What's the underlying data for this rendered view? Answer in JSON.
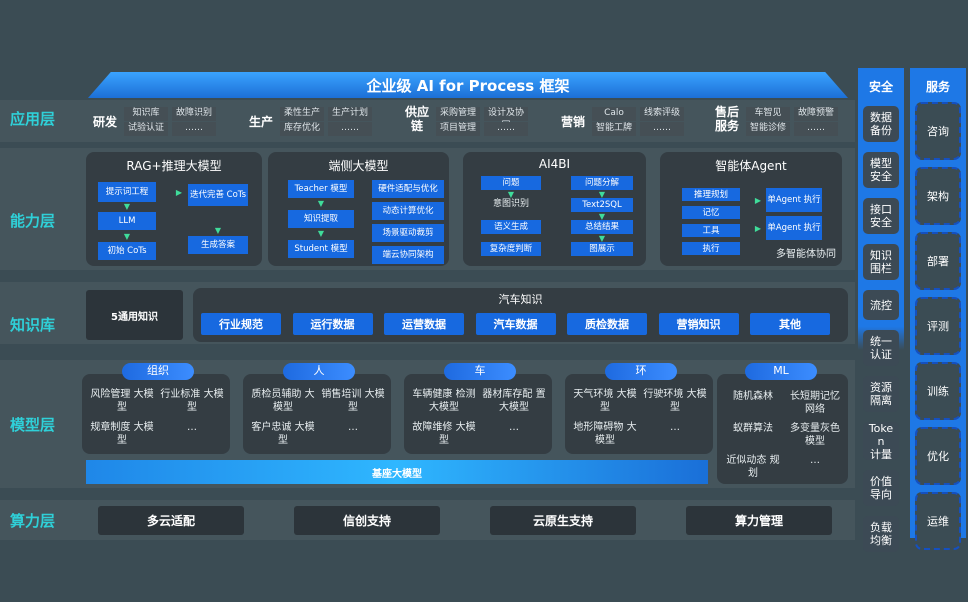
{
  "title": "企业级 AI for Process 框架",
  "layers": {
    "app": "应用层",
    "capability": "能力层",
    "knowledge": "知识库",
    "model": "模型层",
    "compute": "算力层"
  },
  "app_groups": [
    {
      "name": "研发",
      "items": [
        [
          "知识库",
          "试验认证"
        ],
        [
          "故障识别",
          "……"
        ]
      ]
    },
    {
      "name": "生产",
      "items": [
        [
          "柔性生产",
          "库存优化"
        ],
        [
          "生产计划",
          "……"
        ]
      ]
    },
    {
      "name": "供应链",
      "items": [
        [
          "采购管理",
          "项目管理"
        ],
        [
          "设计及协同",
          "……"
        ]
      ]
    },
    {
      "name": "营销",
      "items": [
        [
          "Calo",
          "智能工牌"
        ],
        [
          "线索评级",
          "……"
        ]
      ]
    },
    {
      "name": "售后服务",
      "items": [
        [
          "车智见",
          "智能诊修"
        ],
        [
          "故障预警",
          "……"
        ]
      ]
    }
  ],
  "capability": {
    "rag": {
      "title": "RAG+推理大模型",
      "steps": [
        "提示词工程",
        "LLM",
        "初始 CoTs"
      ],
      "right": [
        "迭代完善 CoTs",
        "生成答案"
      ]
    },
    "edge": {
      "title": "端侧大模型",
      "steps": [
        "Teacher 模型",
        "知识提取",
        "Student 模型"
      ],
      "right": [
        "硬件适配与优化",
        "动态计算优化",
        "场景驱动裁剪",
        "端云协同架构"
      ]
    },
    "ai4bi": {
      "title": "AI4BI",
      "left": [
        "问题",
        "意图识别",
        "语义生成",
        "复杂度判断"
      ],
      "right": [
        "问题分解",
        "Text2SQL",
        "总结结果",
        "图展示"
      ]
    },
    "agent": {
      "title": "智能体Agent",
      "left": [
        "推理规划",
        "记忆",
        "工具",
        "执行"
      ],
      "right": [
        "单Agent 执行",
        "单Agent 执行"
      ],
      "footer": "多智能体协同"
    }
  },
  "knowledge": {
    "general": "5通用知识",
    "auto_title": "汽车知识",
    "items": [
      "行业规范",
      "运行数据",
      "运营数据",
      "汽车数据",
      "质检数据",
      "营销知识",
      "其他"
    ]
  },
  "model": {
    "groups": [
      {
        "name": "组织",
        "items": [
          "风险管理 大模型",
          "行业标准 大模型",
          "规章制度 大模型",
          "…"
        ]
      },
      {
        "name": "人",
        "items": [
          "质检员辅助 大模型",
          "销售培训 大模型",
          "客户忠诚 大模型",
          "…"
        ]
      },
      {
        "name": "车",
        "items": [
          "车辆健康 检测大模型",
          "器材库存配 置大模型",
          "故障维修 大模型",
          "…"
        ]
      },
      {
        "name": "环",
        "items": [
          "天气环境 大模型",
          "行驶环境 大模型",
          "地形障碍物 大模型",
          "…"
        ]
      }
    ],
    "ml": {
      "name": "ML",
      "items": [
        "随机森林",
        "长短期记忆 网络",
        "蚁群算法",
        "多变量灰色 模型",
        "近似动态 规划",
        "…"
      ]
    },
    "base": "基座大模型"
  },
  "compute": [
    "多云适配",
    "信创支持",
    "云原生支持",
    "算力管理"
  ],
  "security": {
    "title": "安全",
    "items": [
      "数据 备份",
      "模型 安全",
      "接口 安全",
      "知识 围栏",
      "流控",
      "统一 认证",
      "资源 隔离",
      "Toke n 计量",
      "价值 导向",
      "负载 均衡"
    ]
  },
  "services": {
    "title": "服务",
    "items": [
      "咨询",
      "架构",
      "部署",
      "评测",
      "训练",
      "优化",
      "运维"
    ]
  }
}
